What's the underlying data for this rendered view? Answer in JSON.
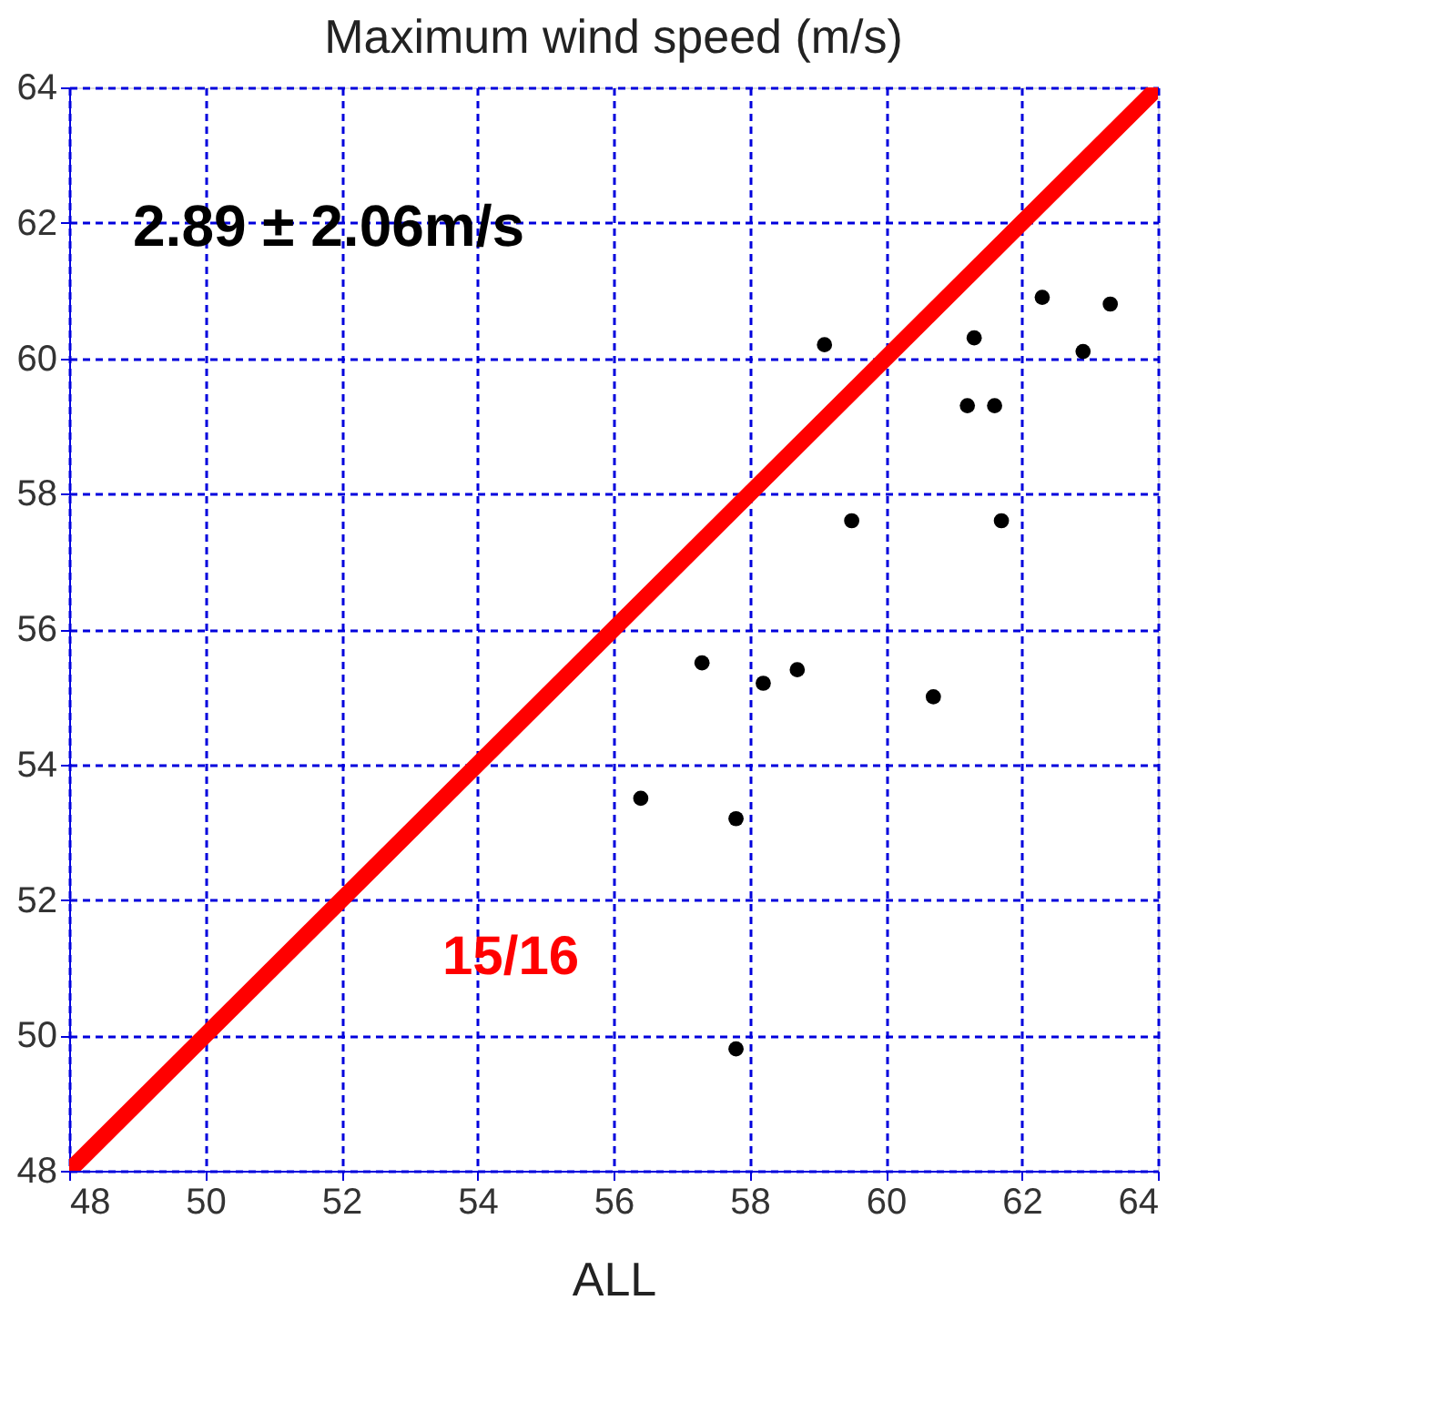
{
  "chart_data": {
    "type": "scatter",
    "title": "Maximum wind speed (m/s)",
    "xlabel": "ALL",
    "series": [
      {
        "type": "scatter",
        "marker": "circle",
        "color": "#000000",
        "x": [
          59.1,
          61.2,
          61.6,
          61.3,
          62.3,
          63.3,
          62.9,
          59.5,
          61.7,
          57.3,
          58.2,
          58.7,
          60.7,
          56.4,
          57.8,
          57.8
        ],
        "values": [
          60.2,
          59.3,
          59.3,
          60.3,
          60.9,
          60.8,
          60.1,
          57.6,
          57.6,
          55.5,
          55.2,
          55.4,
          55.0,
          53.5,
          53.2,
          49.8
        ]
      },
      {
        "type": "line",
        "color": "#ff0000",
        "x": [
          48,
          64
        ],
        "values": [
          48,
          64
        ]
      }
    ],
    "xlim": [
      48,
      64
    ],
    "ylim": [
      48,
      64
    ],
    "xticks": [
      48,
      50,
      52,
      54,
      56,
      58,
      60,
      62,
      64
    ],
    "yticks": [
      48,
      50,
      52,
      54,
      56,
      58,
      60,
      62,
      64
    ],
    "grid": true,
    "annotations": [
      "2.89  ±  2.06m/s",
      "15/16"
    ]
  }
}
